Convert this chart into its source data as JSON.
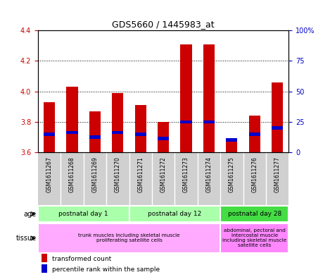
{
  "title": "GDS5660 / 1445983_at",
  "samples": [
    "GSM1611267",
    "GSM1611268",
    "GSM1611269",
    "GSM1611270",
    "GSM1611271",
    "GSM1611272",
    "GSM1611273",
    "GSM1611274",
    "GSM1611275",
    "GSM1611276",
    "GSM1611277"
  ],
  "red_values": [
    3.93,
    4.03,
    3.87,
    3.99,
    3.91,
    3.8,
    4.31,
    4.31,
    3.68,
    3.84,
    4.06
  ],
  "blue_values": [
    3.72,
    3.73,
    3.7,
    3.73,
    3.72,
    3.69,
    3.8,
    3.8,
    3.68,
    3.72,
    3.76
  ],
  "y_min": 3.6,
  "y_max": 4.4,
  "y_ticks_left": [
    3.6,
    3.8,
    4.0,
    4.2,
    4.4
  ],
  "y_ticks_right_labels": [
    "0",
    "25",
    "50",
    "75",
    "100%"
  ],
  "bar_color_red": "#CC0000",
  "bar_color_blue": "#0000CC",
  "bar_width": 0.5,
  "tick_label_bg": "#D0D0D0",
  "age_groups": [
    {
      "label": "postnatal day 1",
      "start": 0,
      "end": 3,
      "color": "#AAFFAA"
    },
    {
      "label": "postnatal day 12",
      "start": 4,
      "end": 7,
      "color": "#AAFFAA"
    },
    {
      "label": "postnatal day 28",
      "start": 8,
      "end": 10,
      "color": "#44DD44"
    }
  ],
  "tissue_groups": [
    {
      "label": "trunk muscles including skeletal muscle\nproliferating satellite cells",
      "start": 0,
      "end": 7,
      "color": "#FFAAFF"
    },
    {
      "label": "abdominal, pectoral and\nintercostal muscle\nincluding skeletal muscle\nsatellite cells",
      "start": 8,
      "end": 10,
      "color": "#FF88FF"
    }
  ],
  "legend_items": [
    {
      "color": "#CC0000",
      "label": "transformed count"
    },
    {
      "color": "#0000CC",
      "label": "percentile rank within the sample"
    }
  ],
  "tick_color_left": "#CC0000",
  "tick_color_right": "#0000CC"
}
